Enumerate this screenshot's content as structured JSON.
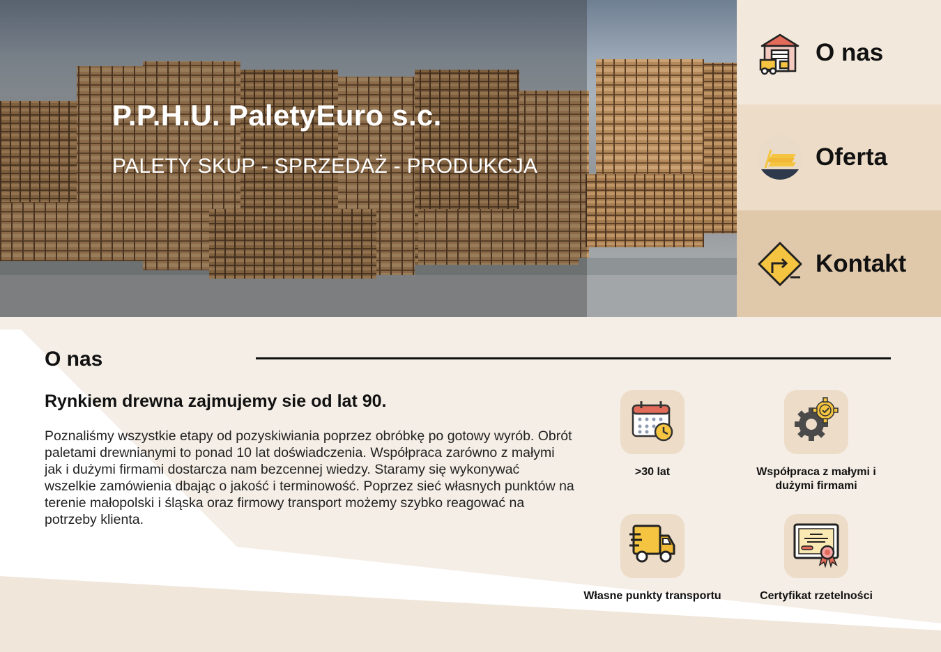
{
  "hero": {
    "title": "P.P.H.U. PaletyEuro s.c.",
    "subtitle": "PALETY SKUP - SPRZEDAŻ - PRODUKCJA"
  },
  "nav": {
    "items": [
      {
        "label": "O nas",
        "icon": "warehouse-forklift-icon"
      },
      {
        "label": "Oferta",
        "icon": "wood-planks-icon"
      },
      {
        "label": "Kontakt",
        "icon": "direction-sign-icon"
      }
    ]
  },
  "about": {
    "heading": "O nas",
    "lead": "Rynkiem drewna zajmujemy sie od lat 90.",
    "body": "Poznaliśmy wszystkie etapy od pozyskiwiania poprzez obróbkę po gotowy wyrób. Obrót paletami drewnianymi to ponad 10 lat doświadczenia. Współpraca zarówno z małymi jak i dużymi firmami dostarcza nam bezcennej wiedzy. Staramy się wykonywać wszelkie zamówienia dbając o jakość i terminowość. Poprzez sieć własnych punktów na terenie małopolski i śląska oraz firmowy transport możemy szybko reagować na potrzeby klienta.",
    "features": [
      {
        "caption": ">30 lat",
        "icon": "calendar-clock-icon"
      },
      {
        "caption": "Współpraca z małymi i dużymi firmami",
        "icon": "gears-icon"
      },
      {
        "caption": "Własne punkty transportu",
        "icon": "delivery-truck-icon"
      },
      {
        "caption": "Certyfikat rzetelności",
        "icon": "certificate-icon"
      }
    ]
  },
  "colors": {
    "nav_1": "#f3e8dc",
    "nav_2": "#eddcc8",
    "nav_3": "#e0c8ab",
    "section_bg": "#f5eee6",
    "accent": "#f5c542"
  }
}
